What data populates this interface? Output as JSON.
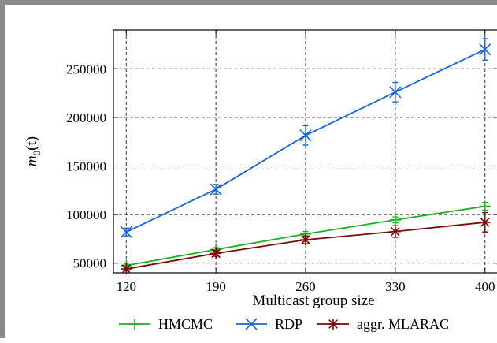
{
  "chart_data": {
    "type": "line",
    "title": "",
    "xlabel": "Multicast group size",
    "ylabel_main": "m",
    "ylabel_sub": "0",
    "ylabel_tail": "(t)",
    "categories": [
      "120",
      "190",
      "260",
      "330",
      "400"
    ],
    "x": [
      120,
      190,
      260,
      330,
      400
    ],
    "xlim": [
      110,
      410
    ],
    "ylim": [
      40000,
      290000
    ],
    "yticks": [
      50000,
      100000,
      150000,
      200000,
      250000
    ],
    "ytick_labels": [
      "50000",
      "100000",
      "150000",
      "200000",
      "250000"
    ],
    "grid": true,
    "legend_position": "bottom",
    "series": [
      {
        "name": "HMCMC",
        "color": "#1fae1f",
        "marker": "plus",
        "values": [
          47500,
          64000,
          80000,
          94500,
          108500
        ],
        "err": [
          1500,
          2000,
          2500,
          3000,
          4000
        ]
      },
      {
        "name": "RDP",
        "color": "#1565e0",
        "marker": "x",
        "values": [
          82000,
          126000,
          181500,
          226000,
          270000
        ],
        "err": [
          4000,
          5000,
          10000,
          10000,
          11000
        ]
      },
      {
        "name": "aggr. MLARAC",
        "color": "#7a0a0a",
        "marker": "star",
        "values": [
          44000,
          60000,
          74000,
          82500,
          92000
        ],
        "err": [
          2000,
          3000,
          4000,
          6000,
          10000
        ]
      }
    ]
  }
}
